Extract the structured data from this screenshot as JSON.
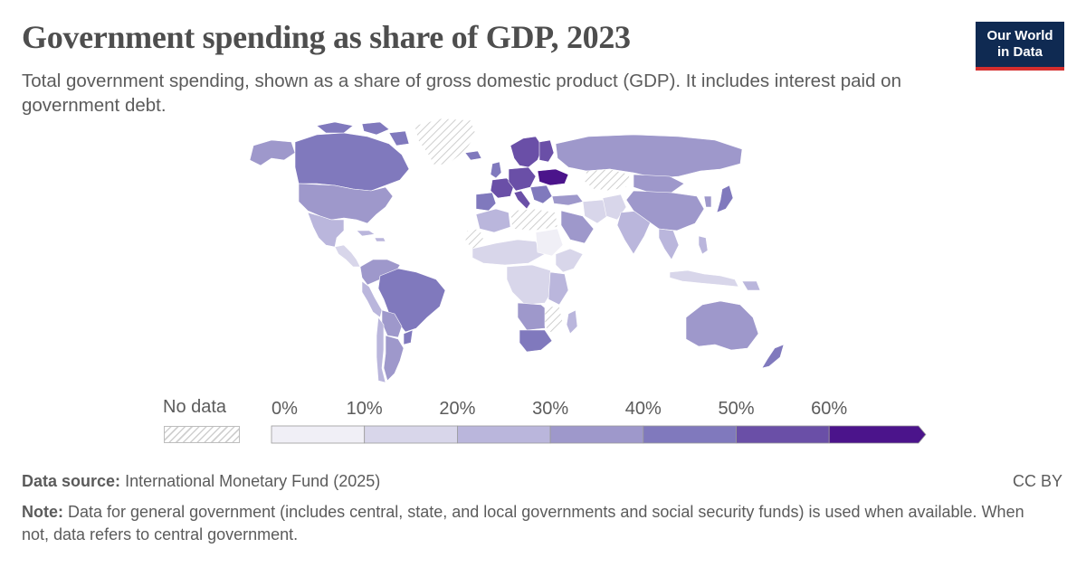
{
  "header": {
    "title": "Government spending as share of GDP, 2023",
    "subtitle": "Total government spending, shown as a share of gross domestic product (GDP). It includes interest paid on government debt."
  },
  "logo": {
    "line1": "Our World",
    "line2": "in Data"
  },
  "legend": {
    "nodata_label": "No data",
    "bins": [
      {
        "label": "0%",
        "color": "#f0eff6"
      },
      {
        "label": "10%",
        "color": "#d8d6ea"
      },
      {
        "label": "20%",
        "color": "#bab6dc"
      },
      {
        "label": "30%",
        "color": "#9e98cb"
      },
      {
        "label": "40%",
        "color": "#8079bd"
      },
      {
        "label": "50%",
        "color": "#6a4fa7"
      },
      {
        "label": "60%",
        "color": "#4b148b"
      }
    ]
  },
  "footer": {
    "source_label": "Data source:",
    "source_text": "International Monetary Fund (2025)",
    "license": "CC BY",
    "note_label": "Note:",
    "note_text": "Data for general government (includes central, state, and local governments and social security funds) is used when available. When not, data refers to central government."
  },
  "colors": {
    "nodata_hatch": "#cfcfcf",
    "country_border": "#ffffff",
    "logo_background": "#0f2a52",
    "logo_underline": "#d52e2e"
  }
}
